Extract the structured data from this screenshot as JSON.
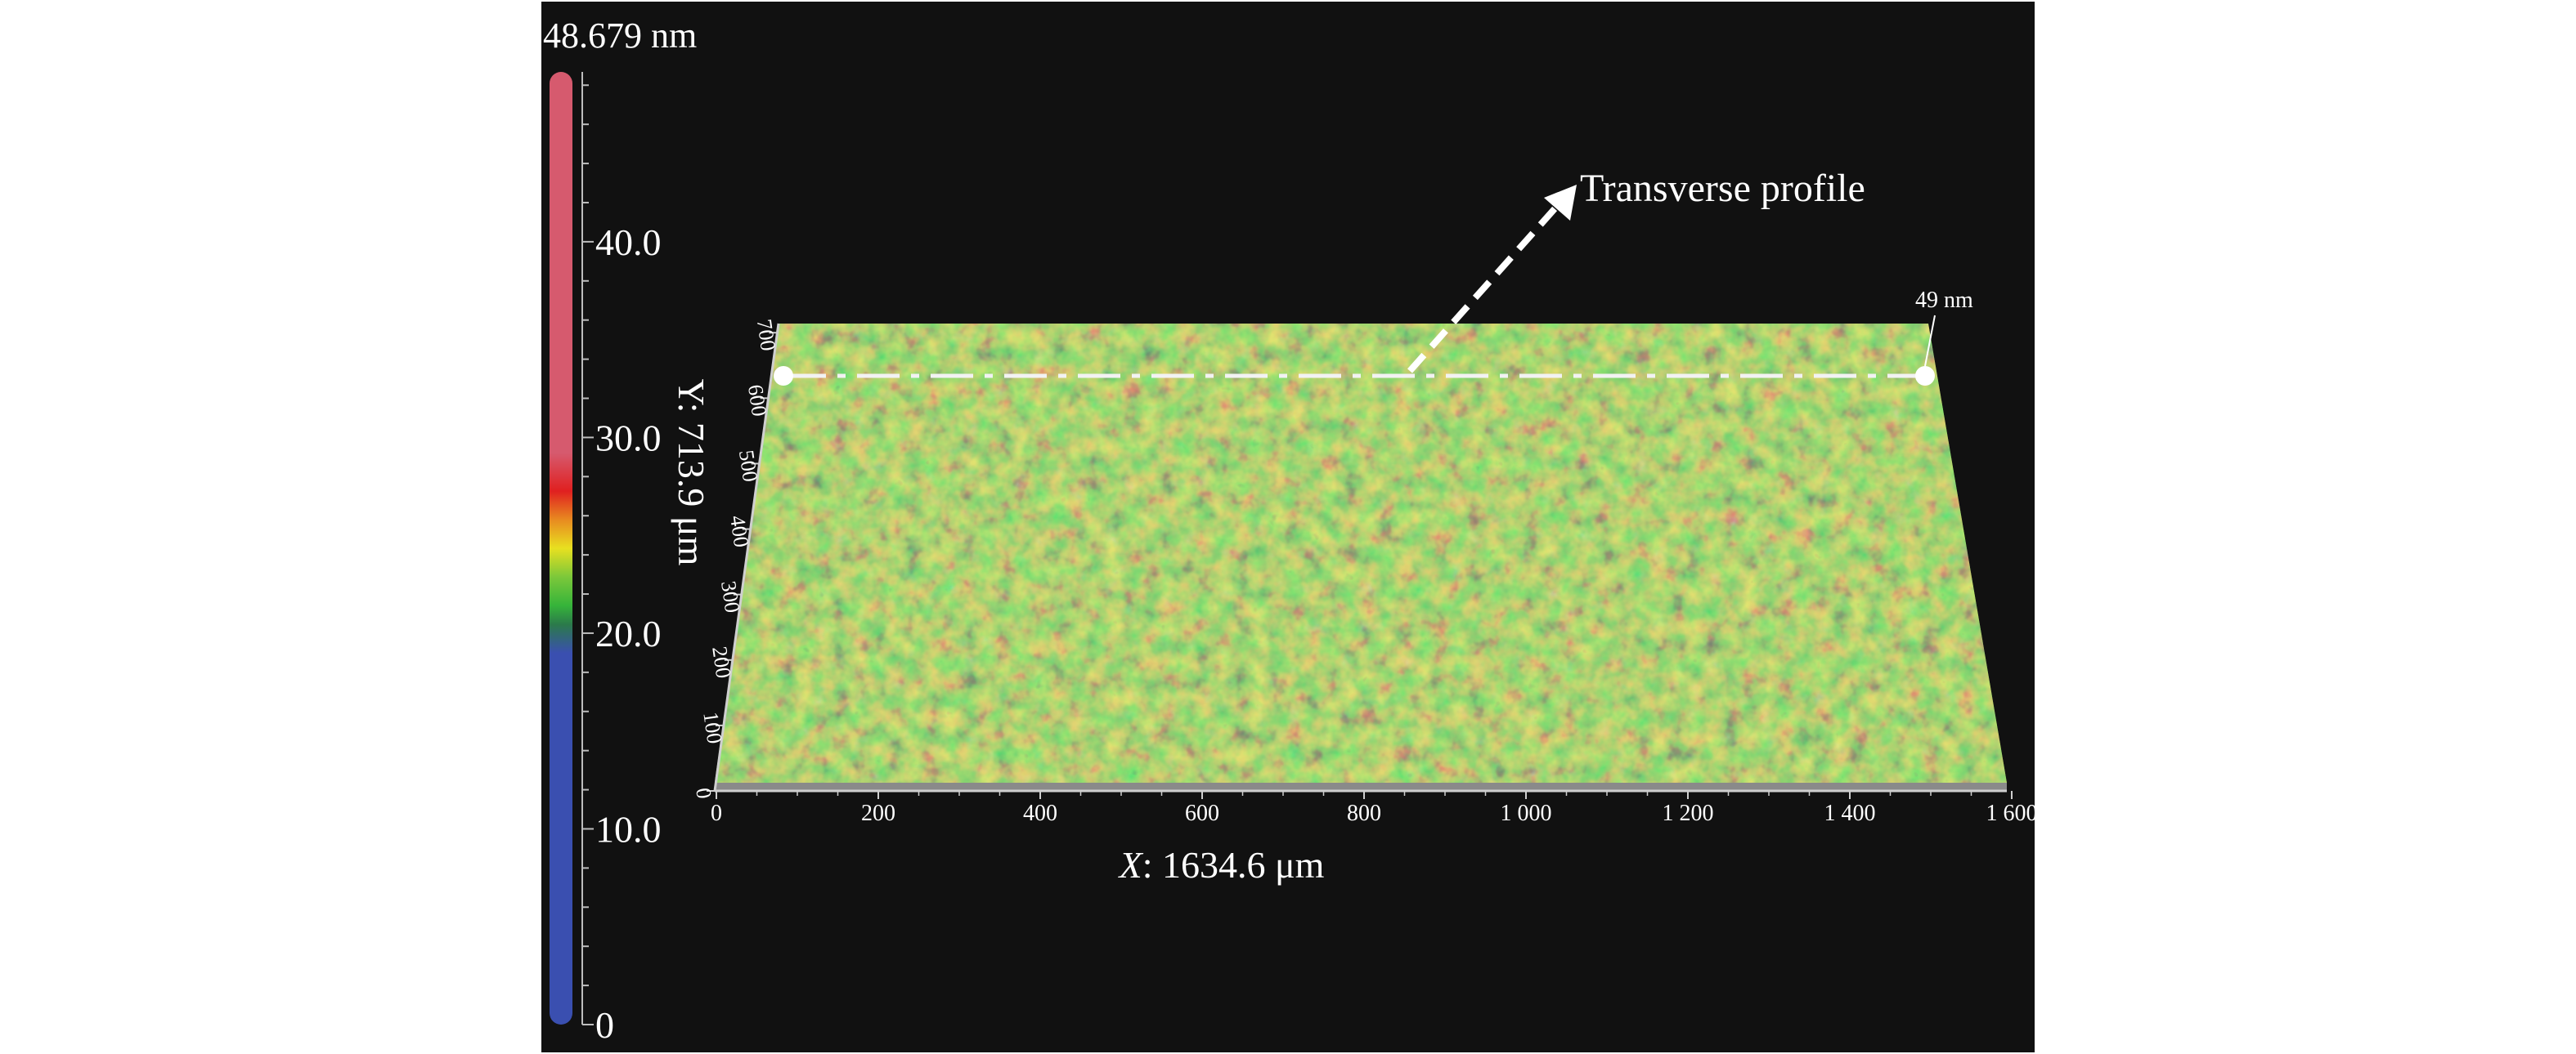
{
  "colorbar": {
    "max_label": "48.679 nm",
    "ticks": [
      {
        "label": "40.0",
        "value": 40
      },
      {
        "label": "30.0",
        "value": 30
      },
      {
        "label": "20.0",
        "value": 20
      },
      {
        "label": "10.0",
        "value": 10
      },
      {
        "label": "0",
        "value": 0
      }
    ],
    "range": [
      0,
      48.679
    ],
    "colors": {
      "high": "#d65a6e",
      "mid_red": "#e02020",
      "yellow": "#e8e020",
      "green": "#36b43a",
      "low": "#3a4fb0"
    }
  },
  "surface": {
    "x_axis": {
      "label_var": "X",
      "label_rest": ": 1634.6 μm",
      "ticks": [
        "0",
        "200",
        "400",
        "600",
        "800",
        "1 000",
        "1 200",
        "1 400",
        "1 600"
      ]
    },
    "y_axis": {
      "label": "Y: 713.9 μm",
      "ticks": [
        "0",
        "100",
        "200",
        "300",
        "400",
        "500",
        "600",
        "700"
      ]
    },
    "height_label": "49 nm",
    "annotation": "Transverse profile",
    "colors": {
      "base": "#4aa636",
      "light": "#9fd93c",
      "orange": "#d9892a",
      "red": "#c8402a",
      "dark": "#1d3a34",
      "blue": "#2c3f8a",
      "profile_line": "#f2f2f2"
    }
  }
}
